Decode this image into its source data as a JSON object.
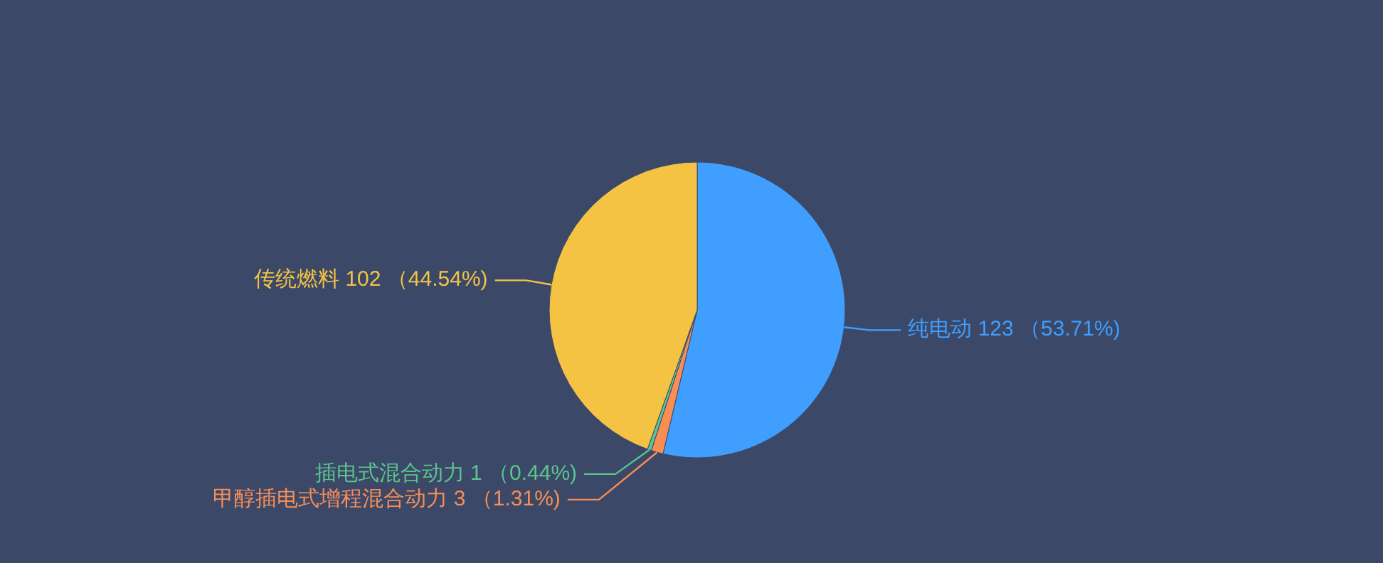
{
  "chart_data": {
    "type": "pie",
    "categories": [
      "纯电动",
      "甲醇插电式增程混合动力",
      "插电式混合动力",
      "传统燃料"
    ],
    "values": [
      123,
      3,
      1,
      102
    ],
    "value_labels": [
      "123 （53.71%)",
      "3 （1.31%)",
      "1 （0.44%)",
      "102 （44.54%)"
    ],
    "colors": [
      "#409eff",
      "#f98e55",
      "#5cc48f",
      "#f4c343"
    ],
    "legend": false
  }
}
